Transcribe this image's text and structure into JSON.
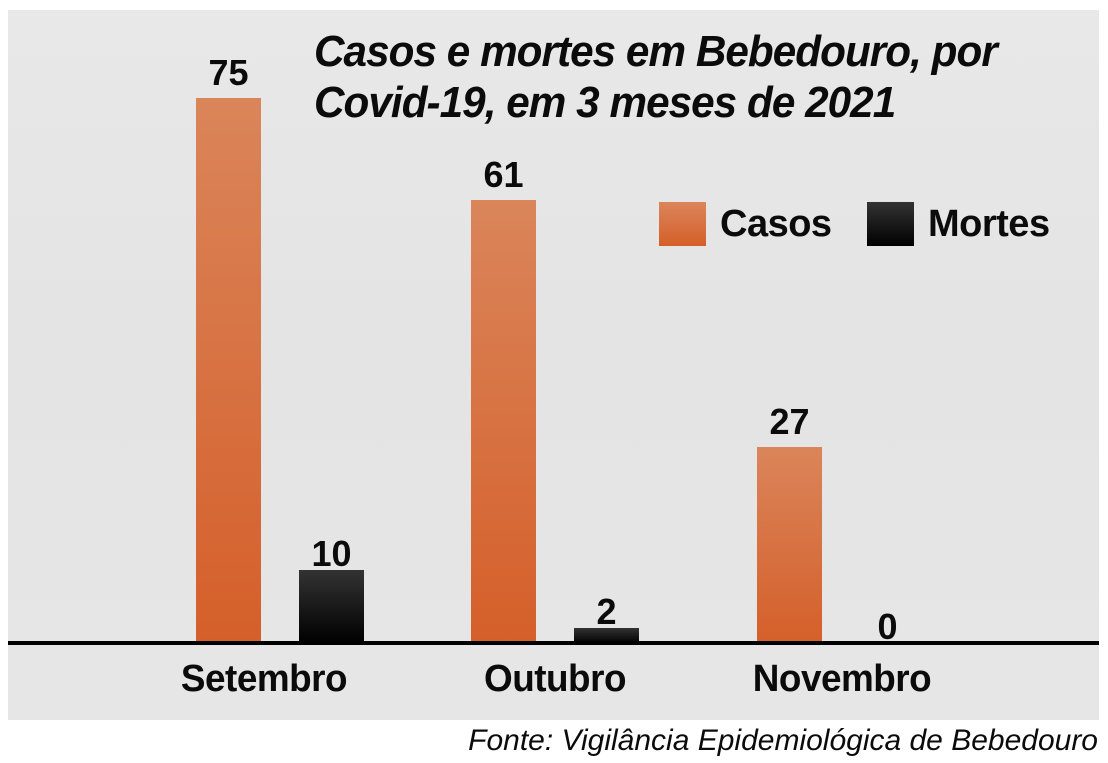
{
  "title": {
    "line1": "Casos e mortes em Bebedouro, por",
    "line2": "Covid-19, em 3 meses de 2021"
  },
  "source": "Fonte: Vigilância Epidemiológica de Bebedouro",
  "legend": {
    "items": [
      {
        "label": "Casos",
        "color_top": "#da855a",
        "color_bottom": "#d55f2a"
      },
      {
        "label": "Mortes",
        "color_top": "#333333",
        "color_bottom": "#000000"
      }
    ]
  },
  "chart_data": {
    "type": "bar",
    "title": "Casos e mortes em Bebedouro, por Covid-19, em 3 meses de 2021",
    "categories": [
      "Setembro",
      "Outubro",
      "Novembro"
    ],
    "series": [
      {
        "name": "Casos",
        "values": [
          75,
          61,
          27
        ],
        "color_top": "#da855a",
        "color_bottom": "#d55f2a"
      },
      {
        "name": "Mortes",
        "values": [
          10,
          2,
          0
        ],
        "color_top": "#333333",
        "color_bottom": "#000000"
      }
    ],
    "ylim": [
      0,
      75
    ],
    "grid": false,
    "value_labels": true,
    "legend_position": "upper-right",
    "background": "#e5e5e5",
    "axis_line_color": "#000000",
    "source": "Fonte: Vigilância Epidemiológica de Bebedouro"
  }
}
